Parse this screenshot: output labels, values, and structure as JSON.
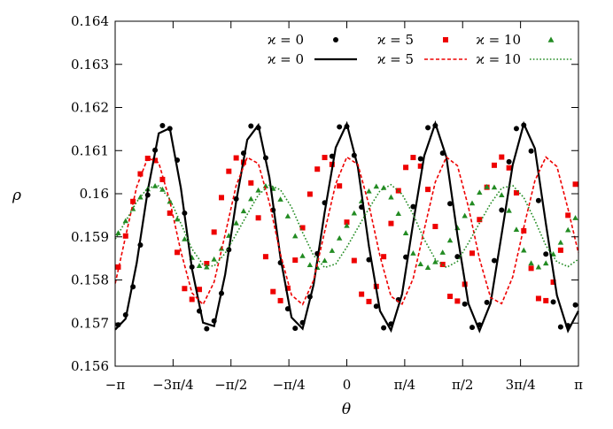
{
  "chart_data": {
    "type": "line",
    "title": "",
    "xlabel": "θ",
    "ylabel": "ρ",
    "xlim": [
      -3.14159,
      3.14159
    ],
    "ylim": [
      0.156,
      0.164
    ],
    "grid": false,
    "legend_position": "top-right",
    "x_ticks": [
      {
        "value": -3.14159,
        "label": "−π"
      },
      {
        "value": -2.35619,
        "label": "−3π/4"
      },
      {
        "value": -1.5708,
        "label": "−π/2"
      },
      {
        "value": -0.7854,
        "label": "−π/4"
      },
      {
        "value": 0,
        "label": "0"
      },
      {
        "value": 0.7854,
        "label": "π/4"
      },
      {
        "value": 1.5708,
        "label": "π/2"
      },
      {
        "value": 2.35619,
        "label": "3π/4"
      },
      {
        "value": 3.14159,
        "label": "π"
      }
    ],
    "y_ticks": [
      {
        "value": 0.156,
        "label": "0.156"
      },
      {
        "value": 0.157,
        "label": "0.157"
      },
      {
        "value": 0.158,
        "label": "0.158"
      },
      {
        "value": 0.159,
        "label": "0.159"
      },
      {
        "value": 0.16,
        "label": "0.16"
      },
      {
        "value": 0.161,
        "label": "0.161"
      },
      {
        "value": 0.162,
        "label": "0.162"
      },
      {
        "value": 0.163,
        "label": "0.163"
      },
      {
        "value": 0.164,
        "label": "0.164"
      }
    ],
    "series": [
      {
        "name": "ϰ = 0",
        "kind": "points",
        "marker": "circle",
        "color": "#000000",
        "x": [
          -3.1,
          -3.0,
          -2.9,
          -2.8,
          -2.7,
          -2.6,
          -2.5,
          -2.4,
          -2.3,
          -2.2,
          -2.1,
          -2.0,
          -1.9,
          -1.8,
          -1.7,
          -1.6,
          -1.5,
          -1.4,
          -1.3,
          -1.2,
          -1.1,
          -1.0,
          -0.9,
          -0.8,
          -0.7,
          -0.6,
          -0.5,
          -0.4,
          -0.3,
          -0.2,
          -0.1,
          0.0,
          0.1,
          0.2,
          0.3,
          0.4,
          0.5,
          0.6,
          0.7,
          0.8,
          0.9,
          1.0,
          1.1,
          1.2,
          1.3,
          1.4,
          1.5,
          1.6,
          1.7,
          1.8,
          1.9,
          2.0,
          2.1,
          2.2,
          2.3,
          2.4,
          2.5,
          2.6,
          2.7,
          2.8,
          2.9,
          3.0,
          3.1
        ],
        "y": [
          0.15696,
          0.15719,
          0.15784,
          0.15881,
          0.15997,
          0.16101,
          0.16158,
          0.16151,
          0.16078,
          0.15955,
          0.1583,
          0.15728,
          0.15687,
          0.15705,
          0.15769,
          0.1587,
          0.15988,
          0.16094,
          0.16157,
          0.16153,
          0.16083,
          0.15962,
          0.1584,
          0.15733,
          0.15688,
          0.15701,
          0.15761,
          0.15861,
          0.15979,
          0.16087,
          0.16155,
          0.16156,
          0.16089,
          0.15969,
          0.15847,
          0.15739,
          0.15689,
          0.15698,
          0.15754,
          0.15853,
          0.1597,
          0.16081,
          0.16153,
          0.16158,
          0.16094,
          0.15977,
          0.15854,
          0.15744,
          0.1569,
          0.15696,
          0.15748,
          0.15845,
          0.15962,
          0.16074,
          0.16151,
          0.16159,
          0.16099,
          0.15984,
          0.1586,
          0.15749,
          0.15691,
          0.15694,
          0.15742
        ]
      },
      {
        "name": "ϰ = 5",
        "kind": "points",
        "marker": "square",
        "color": "#ee0000",
        "x": [
          -3.1,
          -3.0,
          -2.9,
          -2.8,
          -2.7,
          -2.6,
          -2.5,
          -2.4,
          -2.3,
          -2.2,
          -2.1,
          -2.0,
          -1.9,
          -1.8,
          -1.7,
          -1.6,
          -1.5,
          -1.4,
          -1.3,
          -1.2,
          -1.1,
          -1.0,
          -0.9,
          -0.8,
          -0.7,
          -0.6,
          -0.5,
          -0.4,
          -0.3,
          -0.2,
          -0.1,
          0.0,
          0.1,
          0.2,
          0.3,
          0.4,
          0.5,
          0.6,
          0.7,
          0.8,
          0.9,
          1.0,
          1.1,
          1.2,
          1.3,
          1.4,
          1.5,
          1.6,
          1.7,
          1.8,
          1.9,
          2.0,
          2.1,
          2.2,
          2.3,
          2.4,
          2.5,
          2.6,
          2.7,
          2.8,
          2.9,
          3.0,
          3.1
        ],
        "y": [
          0.1583,
          0.15902,
          0.15982,
          0.16046,
          0.16082,
          0.16077,
          0.16033,
          0.15955,
          0.15864,
          0.1578,
          0.15755,
          0.15778,
          0.15838,
          0.15911,
          0.15991,
          0.16052,
          0.16083,
          0.16073,
          0.16025,
          0.15944,
          0.15854,
          0.15773,
          0.15752,
          0.15781,
          0.15846,
          0.15921,
          0.15999,
          0.16057,
          0.16084,
          0.16068,
          0.16018,
          0.15934,
          0.15845,
          0.15767,
          0.1575,
          0.15785,
          0.15854,
          0.15931,
          0.16007,
          0.16061,
          0.16084,
          0.16064,
          0.1601,
          0.15924,
          0.15836,
          0.15762,
          0.15751,
          0.1579,
          0.15862,
          0.1594,
          0.16015,
          0.16066,
          0.16085,
          0.1606,
          0.16002,
          0.15914,
          0.15827,
          0.15757,
          0.15752,
          0.15795,
          0.15869,
          0.1595,
          0.16022
        ]
      },
      {
        "name": "ϰ = 10",
        "kind": "points",
        "marker": "triangle",
        "color": "#228b22",
        "x": [
          -3.1,
          -3.0,
          -2.9,
          -2.8,
          -2.7,
          -2.6,
          -2.5,
          -2.4,
          -2.3,
          -2.2,
          -2.1,
          -2.0,
          -1.9,
          -1.8,
          -1.7,
          -1.6,
          -1.5,
          -1.4,
          -1.3,
          -1.2,
          -1.1,
          -1.0,
          -0.9,
          -0.8,
          -0.7,
          -0.6,
          -0.5,
          -0.4,
          -0.3,
          -0.2,
          -0.1,
          0.0,
          0.1,
          0.2,
          0.3,
          0.4,
          0.5,
          0.6,
          0.7,
          0.8,
          0.9,
          1.0,
          1.1,
          1.2,
          1.3,
          1.4,
          1.5,
          1.6,
          1.7,
          1.8,
          1.9,
          2.0,
          2.1,
          2.2,
          2.3,
          2.4,
          2.5,
          2.6,
          2.7,
          2.8,
          2.9,
          3.0,
          3.1
        ],
        "y": [
          0.15909,
          0.15937,
          0.15965,
          0.15992,
          0.16011,
          0.16018,
          0.1601,
          0.15982,
          0.15941,
          0.15895,
          0.15852,
          0.15833,
          0.1583,
          0.15848,
          0.15873,
          0.15903,
          0.15932,
          0.1596,
          0.15988,
          0.16008,
          0.16018,
          0.16012,
          0.15987,
          0.15948,
          0.15902,
          0.15856,
          0.15835,
          0.15829,
          0.15845,
          0.15868,
          0.15897,
          0.15926,
          0.15955,
          0.15983,
          0.16006,
          0.16017,
          0.16014,
          0.15992,
          0.15954,
          0.15909,
          0.15862,
          0.15837,
          0.15829,
          0.15842,
          0.15864,
          0.15892,
          0.15921,
          0.15949,
          0.15978,
          0.16003,
          0.16016,
          0.16015,
          0.15997,
          0.15961,
          0.15917,
          0.15869,
          0.15839,
          0.1583,
          0.15839,
          0.1586,
          0.15887,
          0.15916,
          0.15944
        ]
      },
      {
        "name": "ϰ = 0",
        "kind": "line",
        "dash": "solid",
        "color": "#000000",
        "x": [
          -3.14,
          -3.0,
          -2.85,
          -2.7,
          -2.55,
          -2.4,
          -2.25,
          -2.1,
          -1.95,
          -1.8,
          -1.65,
          -1.5,
          -1.35,
          -1.2,
          -1.05,
          -0.9,
          -0.75,
          -0.6,
          -0.45,
          -0.3,
          -0.15,
          0.0,
          0.15,
          0.3,
          0.45,
          0.6,
          0.75,
          0.9,
          1.05,
          1.2,
          1.35,
          1.5,
          1.65,
          1.8,
          1.95,
          2.1,
          2.25,
          2.4,
          2.55,
          2.7,
          2.85,
          3.0,
          3.14
        ],
        "y": [
          0.15685,
          0.1571,
          0.15839,
          0.16007,
          0.1614,
          0.16152,
          0.16013,
          0.15826,
          0.15701,
          0.15693,
          0.15813,
          0.15982,
          0.16125,
          0.16159,
          0.16038,
          0.15852,
          0.15713,
          0.15687,
          0.15789,
          0.15957,
          0.16107,
          0.16162,
          0.16062,
          0.15878,
          0.15728,
          0.15683,
          0.15767,
          0.15932,
          0.16088,
          0.16163,
          0.16085,
          0.15904,
          0.15745,
          0.15682,
          0.15746,
          0.15906,
          0.16067,
          0.16162,
          0.16105,
          0.15931,
          0.15764,
          0.15682,
          0.15728
        ]
      },
      {
        "name": "ϰ = 5",
        "kind": "line",
        "dash": "dashed",
        "color": "#ee0000",
        "x": [
          -3.14,
          -3.0,
          -2.85,
          -2.7,
          -2.55,
          -2.4,
          -2.25,
          -2.1,
          -1.95,
          -1.8,
          -1.65,
          -1.5,
          -1.35,
          -1.2,
          -1.05,
          -0.9,
          -0.75,
          -0.6,
          -0.45,
          -0.3,
          -0.15,
          0.0,
          0.15,
          0.3,
          0.45,
          0.6,
          0.75,
          0.9,
          1.05,
          1.2,
          1.35,
          1.5,
          1.65,
          1.8,
          1.95,
          2.1,
          2.25,
          2.4,
          2.55,
          2.7,
          2.85,
          3.0,
          3.14
        ],
        "y": [
          0.15792,
          0.15901,
          0.16016,
          0.16083,
          0.16072,
          0.15983,
          0.15866,
          0.1577,
          0.15743,
          0.15795,
          0.15906,
          0.16019,
          0.16084,
          0.1607,
          0.15979,
          0.1586,
          0.15765,
          0.15743,
          0.15799,
          0.15912,
          0.16023,
          0.16085,
          0.16068,
          0.15974,
          0.15855,
          0.15762,
          0.15744,
          0.15803,
          0.15917,
          0.16027,
          0.16085,
          0.16065,
          0.15969,
          0.15849,
          0.15759,
          0.15745,
          0.15807,
          0.15922,
          0.1603,
          0.16085,
          0.16063,
          0.15965,
          0.15863
        ]
      },
      {
        "name": "ϰ = 10",
        "kind": "line",
        "dash": "dotted",
        "color": "#228b22",
        "x": [
          -3.14,
          -3.0,
          -2.85,
          -2.7,
          -2.55,
          -2.4,
          -2.25,
          -2.1,
          -1.95,
          -1.8,
          -1.65,
          -1.5,
          -1.35,
          -1.2,
          -1.05,
          -0.9,
          -0.75,
          -0.6,
          -0.45,
          -0.3,
          -0.15,
          0.0,
          0.15,
          0.3,
          0.45,
          0.6,
          0.75,
          0.9,
          1.05,
          1.2,
          1.35,
          1.5,
          1.65,
          1.8,
          1.95,
          2.1,
          2.25,
          2.4,
          2.55,
          2.7,
          2.85,
          3.0,
          3.14
        ],
        "y": [
          0.15895,
          0.15936,
          0.15981,
          0.16014,
          0.16018,
          0.15988,
          0.15931,
          0.15872,
          0.15835,
          0.15832,
          0.15862,
          0.15906,
          0.15952,
          0.15997,
          0.1602,
          0.16009,
          0.15969,
          0.1591,
          0.15857,
          0.15829,
          0.15837,
          0.15876,
          0.15921,
          0.15966,
          0.16007,
          0.16021,
          0.15999,
          0.15952,
          0.15894,
          0.15848,
          0.15829,
          0.15843,
          0.15886,
          0.15932,
          0.15977,
          0.16013,
          0.16019,
          0.15991,
          0.15938,
          0.1588,
          0.15842,
          0.15831,
          0.15848
        ]
      }
    ]
  }
}
